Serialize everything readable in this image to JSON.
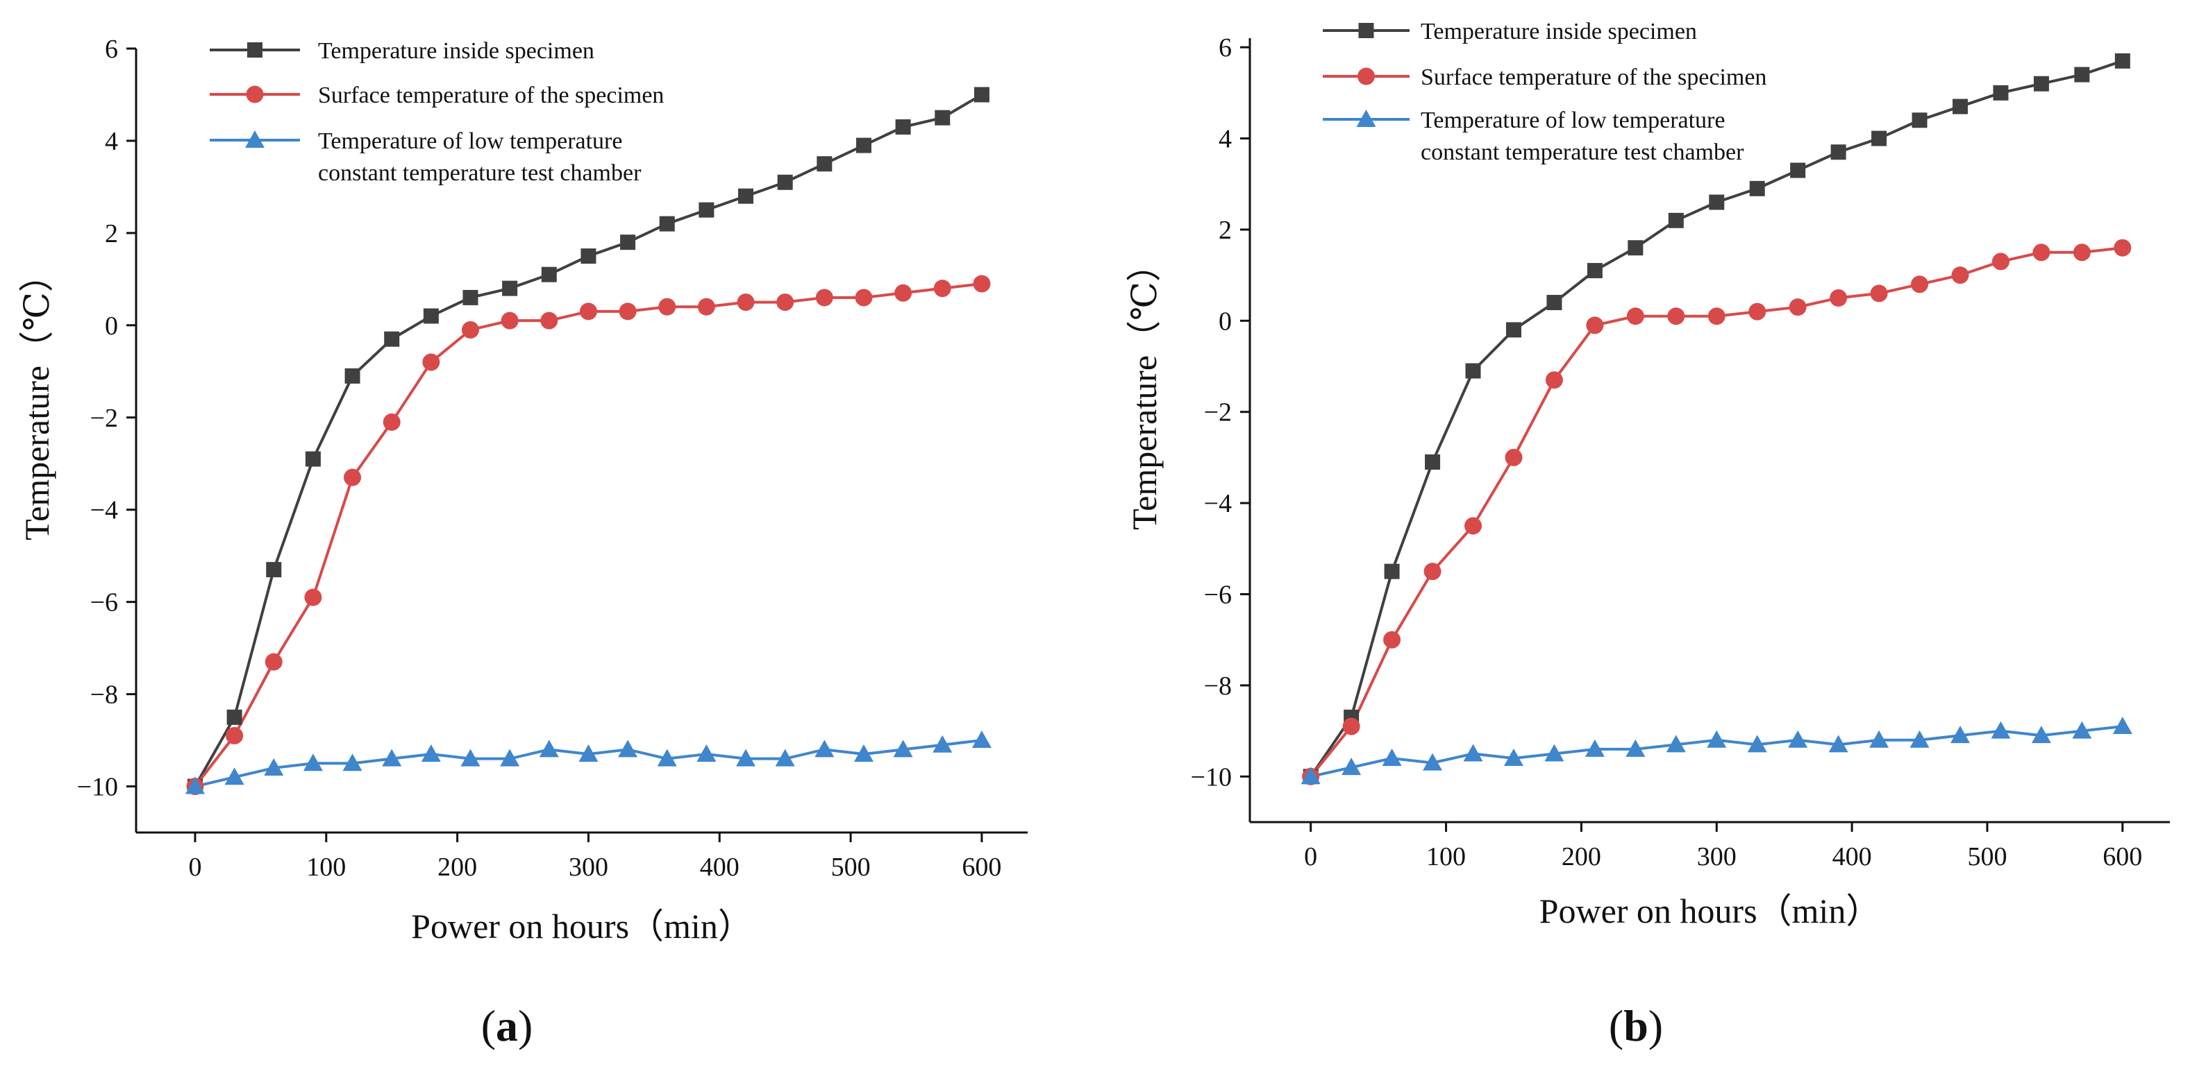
{
  "figure": {
    "panel_labels": [
      "a",
      "b"
    ]
  },
  "colors": {
    "inside": "#404040",
    "surface": "#d84a4a",
    "chamber": "#3f86cc",
    "axis": "#111111"
  },
  "chart_data": [
    {
      "type": "line",
      "panel": "a",
      "title": "",
      "xlabel": "Power on hours（min）",
      "ylabel": "Temperature（℃）",
      "xlim": [
        -45,
        635
      ],
      "ylim": [
        -11,
        6
      ],
      "xticks": [
        0,
        100,
        200,
        300,
        400,
        500,
        600
      ],
      "yticks": [
        -10,
        -8,
        -6,
        -4,
        -2,
        0,
        2,
        4,
        6
      ],
      "legend_position": "top-left",
      "grid": false,
      "x": [
        0,
        30,
        60,
        90,
        120,
        150,
        180,
        210,
        240,
        270,
        300,
        330,
        360,
        390,
        420,
        450,
        480,
        510,
        540,
        570,
        600
      ],
      "series": [
        {
          "key": "inside",
          "name": "Temperature inside specimen",
          "marker": "square",
          "values": [
            -10,
            -8.5,
            -5.3,
            -2.9,
            -1.1,
            -0.3,
            0.2,
            0.6,
            0.8,
            1.1,
            1.5,
            1.8,
            2.2,
            2.5,
            2.8,
            3.1,
            3.5,
            3.9,
            4.3,
            4.5,
            5.0
          ]
        },
        {
          "key": "surface",
          "name": "Surface temperature of the specimen",
          "marker": "circle",
          "values": [
            -10,
            -8.9,
            -7.3,
            -5.9,
            -3.3,
            -2.1,
            -0.8,
            -0.1,
            0.1,
            0.1,
            0.3,
            0.3,
            0.4,
            0.4,
            0.5,
            0.5,
            0.6,
            0.6,
            0.7,
            0.8,
            0.9
          ]
        },
        {
          "key": "chamber",
          "name": "Temperature of low temperature constant temperature test chamber",
          "legend_lines": [
            "Temperature of low temperature",
            "constant temperature test chamber"
          ],
          "marker": "triangle",
          "values": [
            -10,
            -9.8,
            -9.6,
            -9.5,
            -9.5,
            -9.4,
            -9.3,
            -9.4,
            -9.4,
            -9.2,
            -9.3,
            -9.2,
            -9.4,
            -9.3,
            -9.4,
            -9.4,
            -9.2,
            -9.3,
            -9.2,
            -9.1,
            -9.0
          ]
        }
      ]
    },
    {
      "type": "line",
      "panel": "b",
      "title": "",
      "xlabel": "Power on hours（min）",
      "ylabel": "Temperature（℃）",
      "xlim": [
        -45,
        635
      ],
      "ylim": [
        -11,
        6.2
      ],
      "xticks": [
        0,
        100,
        200,
        300,
        400,
        500,
        600
      ],
      "yticks": [
        -10,
        -8,
        -6,
        -4,
        -2,
        0,
        2,
        4,
        6
      ],
      "legend_position": "top-left",
      "grid": false,
      "x": [
        0,
        30,
        60,
        90,
        120,
        150,
        180,
        210,
        240,
        270,
        300,
        330,
        360,
        390,
        420,
        450,
        480,
        510,
        540,
        570,
        600
      ],
      "series": [
        {
          "key": "inside",
          "name": "Temperature inside specimen",
          "marker": "square",
          "values": [
            -10,
            -8.7,
            -5.5,
            -3.1,
            -1.1,
            -0.2,
            0.4,
            1.1,
            1.6,
            2.2,
            2.6,
            2.9,
            3.3,
            3.7,
            4.0,
            4.4,
            4.7,
            5.0,
            5.2,
            5.4,
            5.7
          ]
        },
        {
          "key": "surface",
          "name": "Surface temperature of the specimen",
          "marker": "circle",
          "values": [
            -10,
            -8.9,
            -7.0,
            -5.5,
            -4.5,
            -3.0,
            -1.3,
            -0.1,
            0.1,
            0.1,
            0.1,
            0.2,
            0.3,
            0.5,
            0.6,
            0.8,
            1.0,
            1.3,
            1.5,
            1.5,
            1.6
          ]
        },
        {
          "key": "chamber",
          "name": "Temperature of low temperature constant temperature test chamber",
          "legend_lines": [
            "Temperature of low temperature",
            "constant temperature test chamber"
          ],
          "marker": "triangle",
          "values": [
            -10,
            -9.8,
            -9.6,
            -9.7,
            -9.5,
            -9.6,
            -9.5,
            -9.4,
            -9.4,
            -9.3,
            -9.2,
            -9.3,
            -9.2,
            -9.3,
            -9.2,
            -9.2,
            -9.1,
            -9.0,
            -9.1,
            -9.0,
            -8.9
          ]
        }
      ]
    }
  ]
}
